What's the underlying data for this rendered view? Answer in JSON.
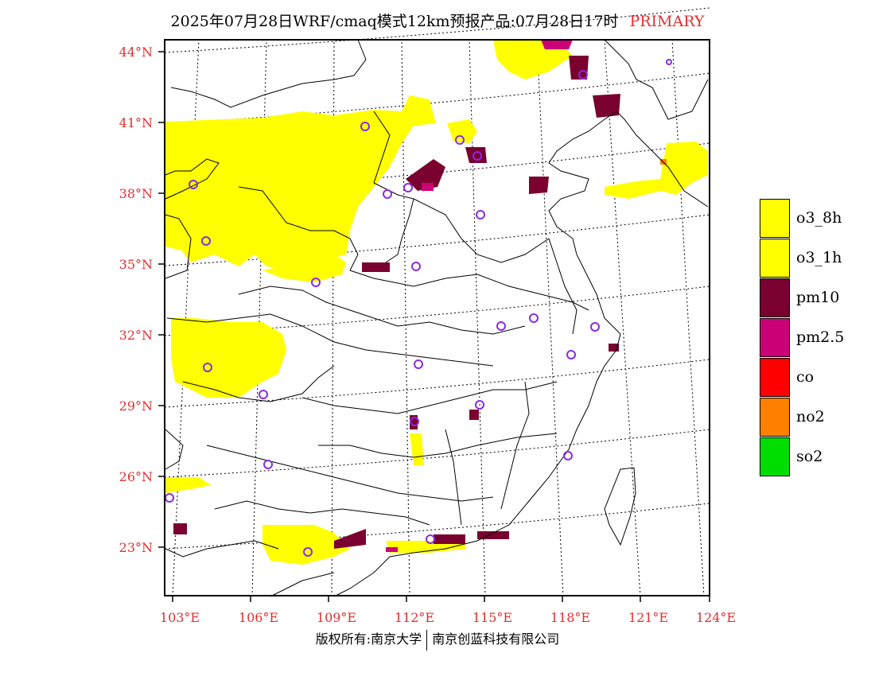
{
  "title": {
    "main": "2025年07月28日WRF/cmaq模式12km预报产品:07月28日17时",
    "tag": "PRIMARY",
    "tag_color": "#e03030"
  },
  "map": {
    "region": "China east",
    "lon_range": [
      102.7,
      124
    ],
    "lat_range": [
      21,
      44.5
    ],
    "lat_ticks": [
      23,
      26,
      29,
      32,
      35,
      38,
      41,
      44
    ],
    "lon_ticks": [
      103,
      106,
      109,
      112,
      115,
      118,
      121,
      124
    ],
    "lat_labels": [
      "23°N",
      "26°N",
      "29°N",
      "32°N",
      "35°N",
      "38°N",
      "41°N",
      "44°N"
    ],
    "lon_labels": [
      "103°E",
      "106°E",
      "109°E",
      "112°E",
      "115°E",
      "118°E",
      "121°E",
      "124°E"
    ],
    "station_marker_color": "#8a2be2"
  },
  "legend": {
    "items": [
      {
        "label": "o3_8h",
        "color": "#ffff00"
      },
      {
        "label": "o3_1h",
        "color": "#ffff00"
      },
      {
        "label": "pm10",
        "color": "#7a0030"
      },
      {
        "label": "pm2.5",
        "color": "#cc0077"
      },
      {
        "label": "co",
        "color": "#ff0000"
      },
      {
        "label": "no2",
        "color": "#ff7f00"
      },
      {
        "label": "so2",
        "color": "#00dd00"
      }
    ]
  },
  "footer": {
    "left": "版权所有:南京大学",
    "right": "南京创蓝科技有限公司"
  }
}
